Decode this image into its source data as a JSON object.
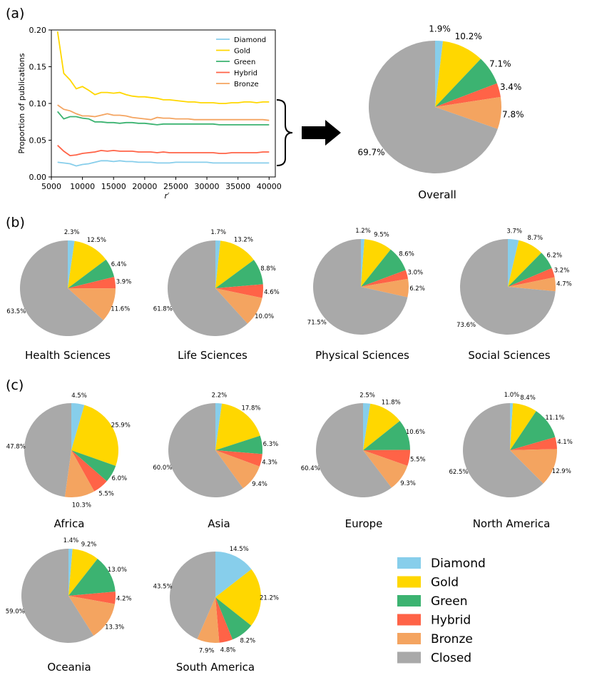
{
  "panels": {
    "a": "(a)",
    "b": "(b)",
    "c": "(c)"
  },
  "colors": {
    "Diamond": "#87ceeb",
    "Gold": "#ffd700",
    "Green": "#3cb371",
    "Hybrid": "#ff6347",
    "Bronze": "#f4a460",
    "Closed": "#a9a9a9"
  },
  "legend": {
    "labels": [
      "Diamond",
      "Gold",
      "Green",
      "Hybrid",
      "Bronze",
      "Closed"
    ]
  },
  "chart_data": [
    {
      "type": "line",
      "panel": "a",
      "xlabel": "r′",
      "ylabel": "Proportion of publications",
      "xlim": [
        5000,
        41000
      ],
      "ylim": [
        0.0,
        0.2
      ],
      "xticks": [
        5000,
        10000,
        15000,
        20000,
        25000,
        30000,
        35000,
        40000
      ],
      "yticks": [
        "0.00",
        "0.05",
        "0.10",
        "0.15",
        "0.20"
      ],
      "legend_position": "top-right",
      "x": [
        6000,
        7000,
        8000,
        9000,
        10000,
        11000,
        12000,
        13000,
        14000,
        15000,
        16000,
        17000,
        18000,
        19000,
        20000,
        21000,
        22000,
        23000,
        24000,
        25000,
        26000,
        27000,
        28000,
        29000,
        30000,
        31000,
        32000,
        33000,
        34000,
        35000,
        36000,
        37000,
        38000,
        39000,
        40000
      ],
      "series": [
        {
          "name": "Diamond",
          "values": [
            0.02,
            0.019,
            0.018,
            0.015,
            0.017,
            0.018,
            0.02,
            0.022,
            0.022,
            0.021,
            0.022,
            0.021,
            0.021,
            0.02,
            0.02,
            0.02,
            0.019,
            0.019,
            0.019,
            0.02,
            0.02,
            0.02,
            0.02,
            0.02,
            0.02,
            0.019,
            0.019,
            0.019,
            0.019,
            0.019,
            0.019,
            0.019,
            0.019,
            0.019,
            0.019
          ]
        },
        {
          "name": "Gold",
          "values": [
            0.198,
            0.141,
            0.132,
            0.12,
            0.123,
            0.118,
            0.112,
            0.115,
            0.115,
            0.114,
            0.115,
            0.112,
            0.11,
            0.109,
            0.109,
            0.108,
            0.107,
            0.105,
            0.105,
            0.104,
            0.103,
            0.102,
            0.102,
            0.101,
            0.101,
            0.101,
            0.1,
            0.1,
            0.101,
            0.101,
            0.102,
            0.102,
            0.101,
            0.102,
            0.102
          ]
        },
        {
          "name": "Green",
          "values": [
            0.089,
            0.079,
            0.082,
            0.082,
            0.08,
            0.079,
            0.075,
            0.075,
            0.074,
            0.074,
            0.073,
            0.074,
            0.074,
            0.073,
            0.073,
            0.072,
            0.071,
            0.072,
            0.072,
            0.072,
            0.072,
            0.072,
            0.072,
            0.072,
            0.072,
            0.072,
            0.071,
            0.071,
            0.071,
            0.071,
            0.071,
            0.071,
            0.071,
            0.071,
            0.071
          ]
        },
        {
          "name": "Hybrid",
          "values": [
            0.043,
            0.035,
            0.029,
            0.03,
            0.032,
            0.033,
            0.034,
            0.036,
            0.035,
            0.036,
            0.035,
            0.035,
            0.035,
            0.034,
            0.034,
            0.034,
            0.033,
            0.034,
            0.033,
            0.033,
            0.033,
            0.033,
            0.033,
            0.033,
            0.033,
            0.033,
            0.032,
            0.032,
            0.033,
            0.033,
            0.033,
            0.033,
            0.033,
            0.034,
            0.034
          ]
        },
        {
          "name": "Bronze",
          "values": [
            0.098,
            0.092,
            0.09,
            0.086,
            0.083,
            0.083,
            0.082,
            0.084,
            0.086,
            0.084,
            0.084,
            0.083,
            0.081,
            0.08,
            0.079,
            0.078,
            0.081,
            0.08,
            0.08,
            0.079,
            0.079,
            0.079,
            0.078,
            0.078,
            0.078,
            0.078,
            0.078,
            0.078,
            0.078,
            0.078,
            0.078,
            0.078,
            0.078,
            0.078,
            0.077
          ]
        }
      ]
    },
    {
      "type": "pie",
      "panel": "a",
      "title": "Overall",
      "labels": [
        "Diamond",
        "Gold",
        "Green",
        "Hybrid",
        "Bronze",
        "Closed"
      ],
      "values": [
        1.9,
        10.2,
        7.1,
        3.4,
        7.8,
        69.7
      ],
      "value_labels": [
        "1.9%",
        "10.2%",
        "7.1%",
        "3.4%",
        "7.8%",
        "69.7%"
      ]
    },
    {
      "type": "pie",
      "panel": "b",
      "title": "Health Sciences",
      "labels": [
        "Diamond",
        "Gold",
        "Green",
        "Hybrid",
        "Bronze",
        "Closed"
      ],
      "values": [
        2.3,
        12.5,
        6.4,
        3.9,
        11.6,
        63.5
      ],
      "value_labels": [
        "2.3%",
        "12.5%",
        "6.4%",
        "3.9%",
        "11.6%",
        "63.5%"
      ]
    },
    {
      "type": "pie",
      "panel": "b",
      "title": "Life Sciences",
      "labels": [
        "Diamond",
        "Gold",
        "Green",
        "Hybrid",
        "Bronze",
        "Closed"
      ],
      "values": [
        1.7,
        13.2,
        8.8,
        4.6,
        10.0,
        61.8
      ],
      "value_labels": [
        "1.7%",
        "13.2%",
        "8.8%",
        "4.6%",
        "10.0%",
        "61.8%"
      ]
    },
    {
      "type": "pie",
      "panel": "b",
      "title": "Physical Sciences",
      "labels": [
        "Diamond",
        "Gold",
        "Green",
        "Hybrid",
        "Bronze",
        "Closed"
      ],
      "values": [
        1.2,
        9.5,
        8.6,
        3.0,
        6.2,
        71.5
      ],
      "value_labels": [
        "1.2%",
        "9.5%",
        "8.6%",
        "3.0%",
        "6.2%",
        "71.5%"
      ]
    },
    {
      "type": "pie",
      "panel": "b",
      "title": "Social Sciences",
      "labels": [
        "Diamond",
        "Gold",
        "Green",
        "Hybrid",
        "Bronze",
        "Closed"
      ],
      "values": [
        3.7,
        8.7,
        6.2,
        3.2,
        4.7,
        73.6
      ],
      "value_labels": [
        "3.7%",
        "8.7%",
        "6.2%",
        "3.2%",
        "4.7%",
        "73.6%"
      ]
    },
    {
      "type": "pie",
      "panel": "c",
      "title": "Africa",
      "labels": [
        "Diamond",
        "Gold",
        "Green",
        "Hybrid",
        "Bronze",
        "Closed"
      ],
      "values": [
        4.5,
        25.9,
        6.0,
        5.5,
        10.3,
        47.8
      ],
      "value_labels": [
        "4.5%",
        "25.9%",
        "6.0%",
        "5.5%",
        "10.3%",
        "47.8%"
      ]
    },
    {
      "type": "pie",
      "panel": "c",
      "title": "Asia",
      "labels": [
        "Diamond",
        "Gold",
        "Green",
        "Hybrid",
        "Bronze",
        "Closed"
      ],
      "values": [
        2.2,
        17.8,
        6.3,
        4.3,
        9.4,
        60.0
      ],
      "value_labels": [
        "2.2%",
        "17.8%",
        "6.3%",
        "4.3%",
        "9.4%",
        "60.0%"
      ]
    },
    {
      "type": "pie",
      "panel": "c",
      "title": "Europe",
      "labels": [
        "Diamond",
        "Gold",
        "Green",
        "Hybrid",
        "Bronze",
        "Closed"
      ],
      "values": [
        2.5,
        11.8,
        10.6,
        5.5,
        9.3,
        60.4
      ],
      "value_labels": [
        "2.5%",
        "11.8%",
        "10.6%",
        "5.5%",
        "9.3%",
        "60.4%"
      ]
    },
    {
      "type": "pie",
      "panel": "c",
      "title": "North America",
      "labels": [
        "Diamond",
        "Gold",
        "Green",
        "Hybrid",
        "Bronze",
        "Closed"
      ],
      "values": [
        1.0,
        8.4,
        11.1,
        4.1,
        12.9,
        62.5
      ],
      "value_labels": [
        "1.0%",
        "8.4%",
        "11.1%",
        "4.1%",
        "12.9%",
        "62.5%"
      ]
    },
    {
      "type": "pie",
      "panel": "c",
      "title": "Oceania",
      "labels": [
        "Diamond",
        "Gold",
        "Green",
        "Hybrid",
        "Bronze",
        "Closed"
      ],
      "values": [
        1.4,
        9.2,
        13.0,
        4.2,
        13.3,
        59.0
      ],
      "value_labels": [
        "1.4%",
        "9.2%",
        "13.0%",
        "4.2%",
        "13.3%",
        "59.0%"
      ]
    },
    {
      "type": "pie",
      "panel": "c",
      "title": "South America",
      "labels": [
        "Diamond",
        "Gold",
        "Green",
        "Hybrid",
        "Bronze",
        "Closed"
      ],
      "values": [
        14.5,
        21.2,
        8.2,
        4.8,
        7.9,
        43.5
      ],
      "value_labels": [
        "14.5%",
        "21.2%",
        "8.2%",
        "4.8%",
        "7.9%",
        "43.5%"
      ]
    }
  ]
}
